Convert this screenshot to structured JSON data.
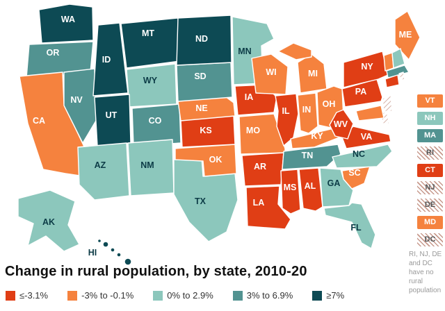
{
  "title": "Change in rural population, by state, 2010-20",
  "note": "RI, NJ, DE and DC have no rural population",
  "colors": {
    "decline_large": "#e03e15",
    "decline_small": "#f5823e",
    "growth_small": "#8cc7bc",
    "growth_medium": "#529391",
    "growth_large": "#0d4a54",
    "hatch": "#c7998c",
    "label_on_dark": "#ffffff",
    "label_on_light": "#0c3b46",
    "no_data_text": "#555555",
    "note_text": "#999999",
    "title_text": "#101010"
  },
  "chart_data": {
    "type": "choropleth",
    "subtype": "us-states",
    "title": "Change in rural population, by state, 2010-20",
    "legend_position": "bottom",
    "categories": [
      {
        "key": "decline_large",
        "label": "≤-3.1%",
        "color": "#e03e15"
      },
      {
        "key": "decline_small",
        "label": "-3% to -0.1%",
        "color": "#f5823e"
      },
      {
        "key": "growth_small",
        "label": "0% to 2.9%",
        "color": "#8cc7bc"
      },
      {
        "key": "growth_medium",
        "label": "3% to 6.9%",
        "color": "#529391"
      },
      {
        "key": "growth_large",
        "label": "≥7%",
        "color": "#0d4a54"
      }
    ],
    "no_data_key": "no_rural",
    "no_data_note": "RI, NJ, DE and DC have no rural population",
    "states": [
      {
        "state": "WA",
        "category": "growth_large"
      },
      {
        "state": "OR",
        "category": "growth_medium"
      },
      {
        "state": "CA",
        "category": "decline_small"
      },
      {
        "state": "NV",
        "category": "growth_medium"
      },
      {
        "state": "ID",
        "category": "growth_large"
      },
      {
        "state": "MT",
        "category": "growth_large"
      },
      {
        "state": "WY",
        "category": "growth_small"
      },
      {
        "state": "UT",
        "category": "growth_large"
      },
      {
        "state": "CO",
        "category": "growth_medium"
      },
      {
        "state": "AZ",
        "category": "growth_small"
      },
      {
        "state": "NM",
        "category": "growth_small"
      },
      {
        "state": "TX",
        "category": "growth_small"
      },
      {
        "state": "OK",
        "category": "decline_small"
      },
      {
        "state": "KS",
        "category": "decline_large"
      },
      {
        "state": "NE",
        "category": "decline_small"
      },
      {
        "state": "SD",
        "category": "growth_medium"
      },
      {
        "state": "ND",
        "category": "growth_large"
      },
      {
        "state": "MN",
        "category": "growth_small"
      },
      {
        "state": "IA",
        "category": "decline_large"
      },
      {
        "state": "MO",
        "category": "decline_small"
      },
      {
        "state": "AR",
        "category": "decline_large"
      },
      {
        "state": "LA",
        "category": "decline_large"
      },
      {
        "state": "WI",
        "category": "decline_small"
      },
      {
        "state": "IL",
        "category": "decline_large"
      },
      {
        "state": "MI",
        "category": "decline_small"
      },
      {
        "state": "IN",
        "category": "decline_small"
      },
      {
        "state": "OH",
        "category": "decline_small"
      },
      {
        "state": "KY",
        "category": "decline_small"
      },
      {
        "state": "TN",
        "category": "growth_medium"
      },
      {
        "state": "MS",
        "category": "decline_large"
      },
      {
        "state": "AL",
        "category": "decline_large"
      },
      {
        "state": "GA",
        "category": "growth_small"
      },
      {
        "state": "FL",
        "category": "growth_small"
      },
      {
        "state": "SC",
        "category": "decline_small"
      },
      {
        "state": "NC",
        "category": "growth_small"
      },
      {
        "state": "VA",
        "category": "decline_large"
      },
      {
        "state": "WV",
        "category": "decline_large"
      },
      {
        "state": "PA",
        "category": "decline_large"
      },
      {
        "state": "NY",
        "category": "decline_large"
      },
      {
        "state": "ME",
        "category": "decline_small"
      },
      {
        "state": "VT",
        "category": "decline_small"
      },
      {
        "state": "NH",
        "category": "growth_small"
      },
      {
        "state": "MA",
        "category": "growth_medium"
      },
      {
        "state": "RI",
        "category": "no_rural"
      },
      {
        "state": "CT",
        "category": "decline_large"
      },
      {
        "state": "NJ",
        "category": "no_rural"
      },
      {
        "state": "DE",
        "category": "no_rural"
      },
      {
        "state": "MD",
        "category": "decline_small"
      },
      {
        "state": "DC",
        "category": "no_rural"
      },
      {
        "state": "AK",
        "category": "growth_small"
      },
      {
        "state": "HI",
        "category": "growth_large"
      }
    ]
  },
  "side_states": [
    "VT",
    "NH",
    "MA",
    "RI",
    "CT",
    "NJ",
    "DE",
    "MD",
    "DC"
  ]
}
